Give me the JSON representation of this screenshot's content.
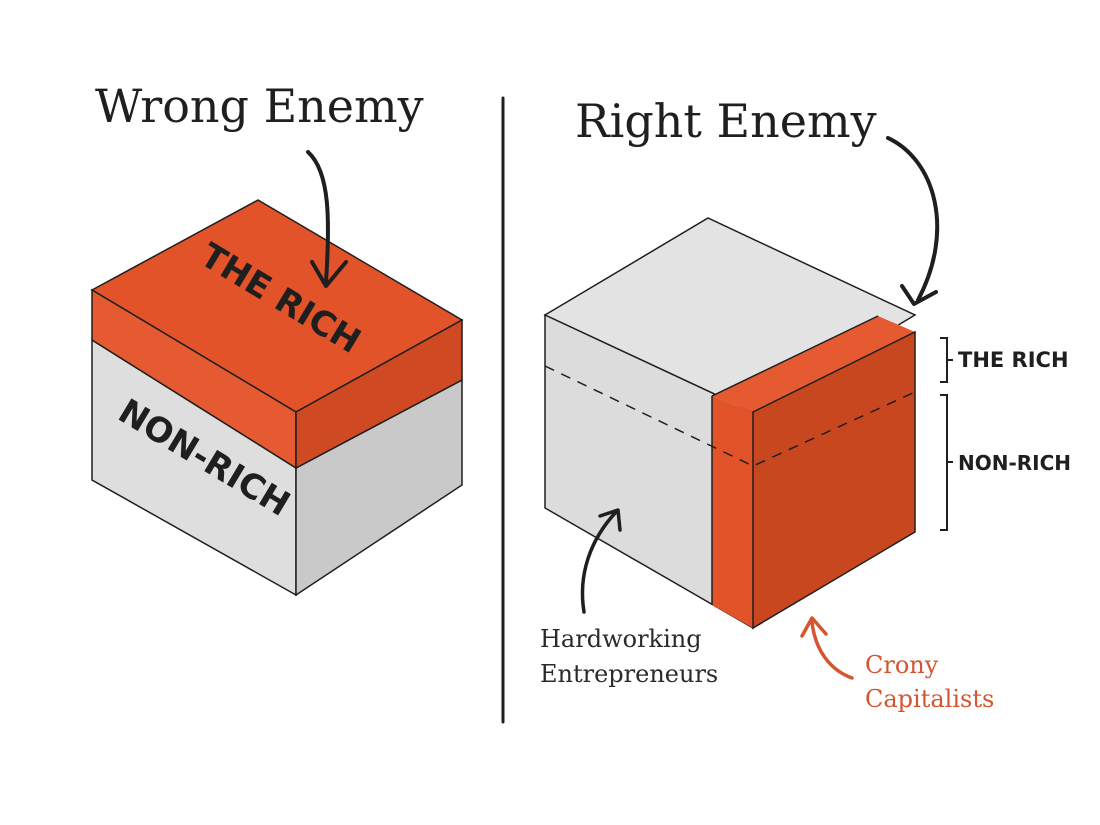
{
  "left_panel": {
    "title": "Wrong Enemy",
    "top_label": "THE RICH",
    "bottom_label": "NON-RICH"
  },
  "right_panel": {
    "title": "Right Enemy",
    "bracket_top_label": "THE RICH",
    "bracket_bottom_label": "NON-RICH",
    "caption_left_line1": "Hardworking",
    "caption_left_line2": "Entrepreneurs",
    "caption_right_line1": "Crony",
    "caption_right_line2": "Capitalists"
  },
  "colors": {
    "accent_orange": "#e2532a",
    "dark_orange": "#c9471f",
    "gray_light": "#dcdcdc",
    "gray_mid": "#c6c6c6",
    "ink": "#1f1f1f",
    "caption_orange": "#d4552f"
  }
}
